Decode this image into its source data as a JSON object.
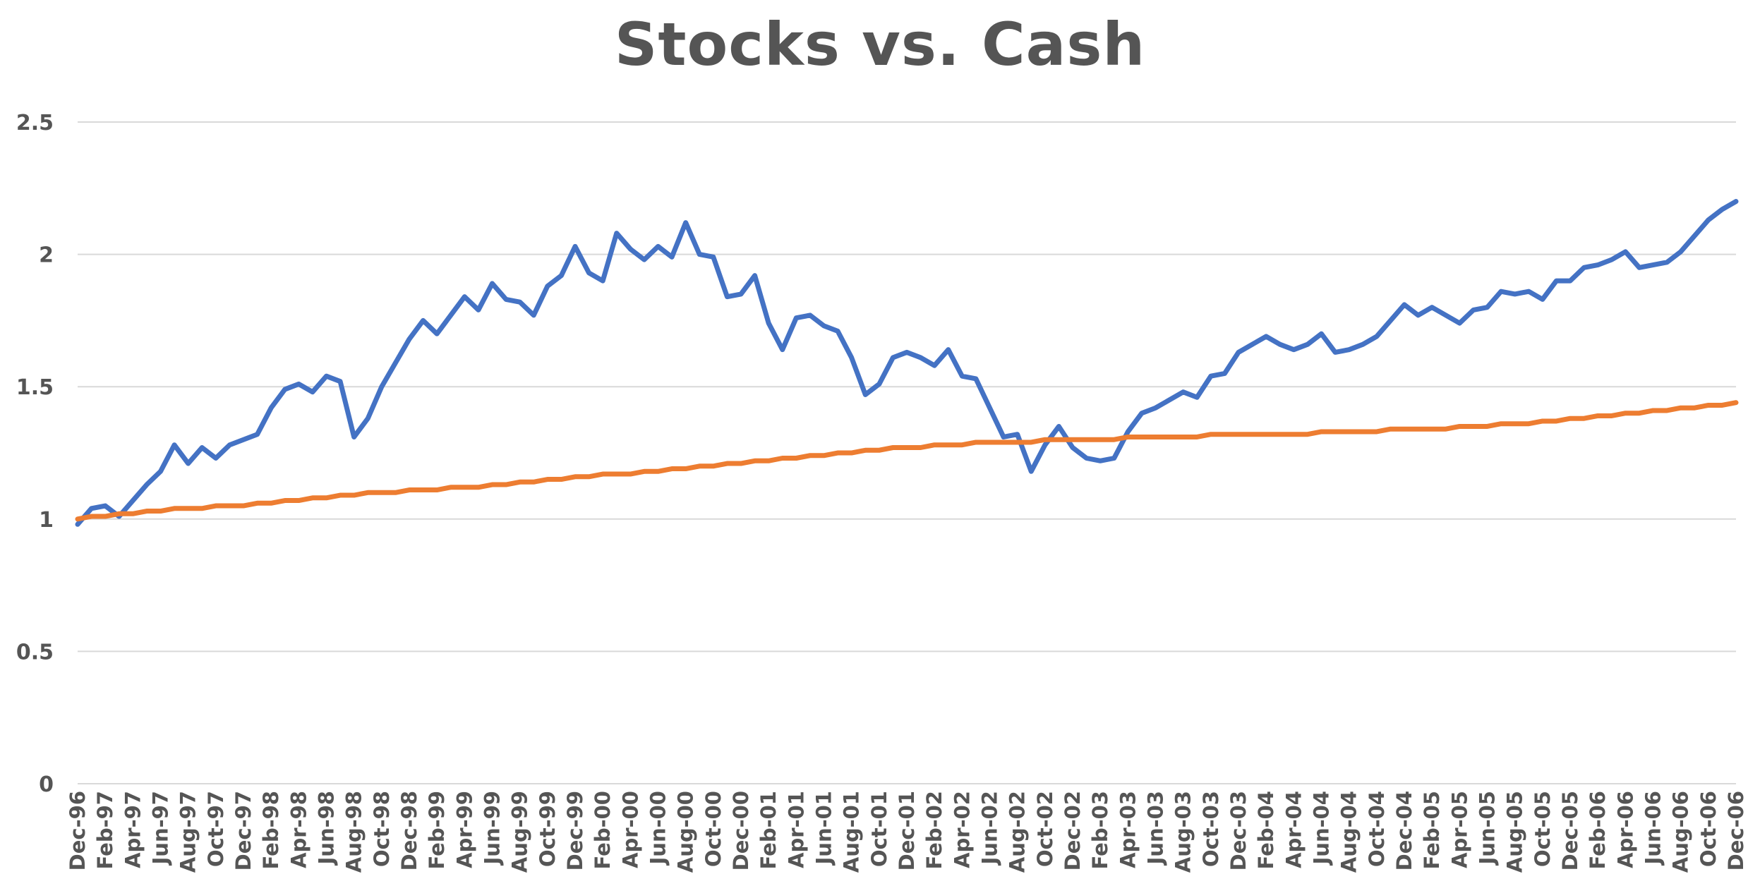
{
  "chart_data": {
    "type": "line",
    "title": "Stocks vs. Cash",
    "xlabel": "",
    "ylabel": "",
    "ylim": [
      0,
      2.5
    ],
    "yticks": [
      "0",
      "0.5",
      "1",
      "1.5",
      "2",
      "2.5"
    ],
    "grid": true,
    "legend": "none",
    "x_start": "Dec-96",
    "x_end": "Dec-06",
    "x_tick_labels": [
      "Dec-96",
      "Feb-97",
      "Apr-97",
      "Jun-97",
      "Aug-97",
      "Oct-97",
      "Dec-97",
      "Feb-98",
      "Apr-98",
      "Jun-98",
      "Aug-98",
      "Oct-98",
      "Dec-98",
      "Feb-99",
      "Apr-99",
      "Jun-99",
      "Aug-99",
      "Oct-99",
      "Dec-99",
      "Feb-00",
      "Apr-00",
      "Jun-00",
      "Aug-00",
      "Oct-00",
      "Dec-00",
      "Feb-01",
      "Apr-01",
      "Jun-01",
      "Aug-01",
      "Oct-01",
      "Dec-01",
      "Feb-02",
      "Apr-02",
      "Jun-02",
      "Aug-02",
      "Oct-02",
      "Dec-02",
      "Feb-03",
      "Apr-03",
      "Jun-03",
      "Aug-03",
      "Oct-03",
      "Dec-03",
      "Feb-04",
      "Apr-04",
      "Jun-04",
      "Aug-04",
      "Oct-04",
      "Dec-04",
      "Feb-05",
      "Apr-05",
      "Jun-05",
      "Aug-05",
      "Oct-05",
      "Dec-05",
      "Feb-06",
      "Apr-06",
      "Jun-06",
      "Aug-06",
      "Oct-06",
      "Dec-06"
    ],
    "series": [
      {
        "color": "#4472c4",
        "values": [
          0.98,
          1.04,
          1.05,
          1.01,
          1.07,
          1.13,
          1.18,
          1.28,
          1.21,
          1.27,
          1.23,
          1.28,
          1.3,
          1.32,
          1.42,
          1.49,
          1.51,
          1.48,
          1.54,
          1.52,
          1.31,
          1.38,
          1.5,
          1.59,
          1.68,
          1.75,
          1.7,
          1.77,
          1.84,
          1.79,
          1.89,
          1.83,
          1.82,
          1.77,
          1.88,
          1.92,
          2.03,
          1.93,
          1.9,
          2.08,
          2.02,
          1.98,
          2.03,
          1.99,
          2.12,
          2.0,
          1.99,
          1.84,
          1.85,
          1.92,
          1.74,
          1.64,
          1.76,
          1.77,
          1.73,
          1.71,
          1.61,
          1.47,
          1.51,
          1.61,
          1.63,
          1.61,
          1.58,
          1.64,
          1.54,
          1.53,
          1.42,
          1.31,
          1.32,
          1.18,
          1.28,
          1.35,
          1.27,
          1.23,
          1.22,
          1.23,
          1.33,
          1.4,
          1.42,
          1.45,
          1.48,
          1.46,
          1.54,
          1.55,
          1.63,
          1.66,
          1.69,
          1.66,
          1.64,
          1.66,
          1.7,
          1.63,
          1.64,
          1.66,
          1.69,
          1.75,
          1.81,
          1.77,
          1.8,
          1.77,
          1.74,
          1.79,
          1.8,
          1.86,
          1.85,
          1.86,
          1.83,
          1.9,
          1.9,
          1.95,
          1.96,
          1.98,
          2.01,
          1.95,
          1.96,
          1.97,
          2.01,
          2.07,
          2.13,
          2.17,
          2.2
        ]
      },
      {
        "color": "#ed7d31",
        "values": [
          1.0,
          1.01,
          1.01,
          1.02,
          1.02,
          1.03,
          1.03,
          1.04,
          1.04,
          1.04,
          1.05,
          1.05,
          1.05,
          1.06,
          1.06,
          1.07,
          1.07,
          1.08,
          1.08,
          1.09,
          1.09,
          1.1,
          1.1,
          1.1,
          1.11,
          1.11,
          1.11,
          1.12,
          1.12,
          1.12,
          1.13,
          1.13,
          1.14,
          1.14,
          1.15,
          1.15,
          1.16,
          1.16,
          1.17,
          1.17,
          1.17,
          1.18,
          1.18,
          1.19,
          1.19,
          1.2,
          1.2,
          1.21,
          1.21,
          1.22,
          1.22,
          1.23,
          1.23,
          1.24,
          1.24,
          1.25,
          1.25,
          1.26,
          1.26,
          1.27,
          1.27,
          1.27,
          1.28,
          1.28,
          1.28,
          1.29,
          1.29,
          1.29,
          1.29,
          1.29,
          1.3,
          1.3,
          1.3,
          1.3,
          1.3,
          1.3,
          1.31,
          1.31,
          1.31,
          1.31,
          1.31,
          1.31,
          1.32,
          1.32,
          1.32,
          1.32,
          1.32,
          1.32,
          1.32,
          1.32,
          1.33,
          1.33,
          1.33,
          1.33,
          1.33,
          1.34,
          1.34,
          1.34,
          1.34,
          1.34,
          1.35,
          1.35,
          1.35,
          1.36,
          1.36,
          1.36,
          1.37,
          1.37,
          1.38,
          1.38,
          1.39,
          1.39,
          1.4,
          1.4,
          1.41,
          1.41,
          1.42,
          1.42,
          1.43,
          1.43,
          1.44
        ]
      }
    ]
  }
}
